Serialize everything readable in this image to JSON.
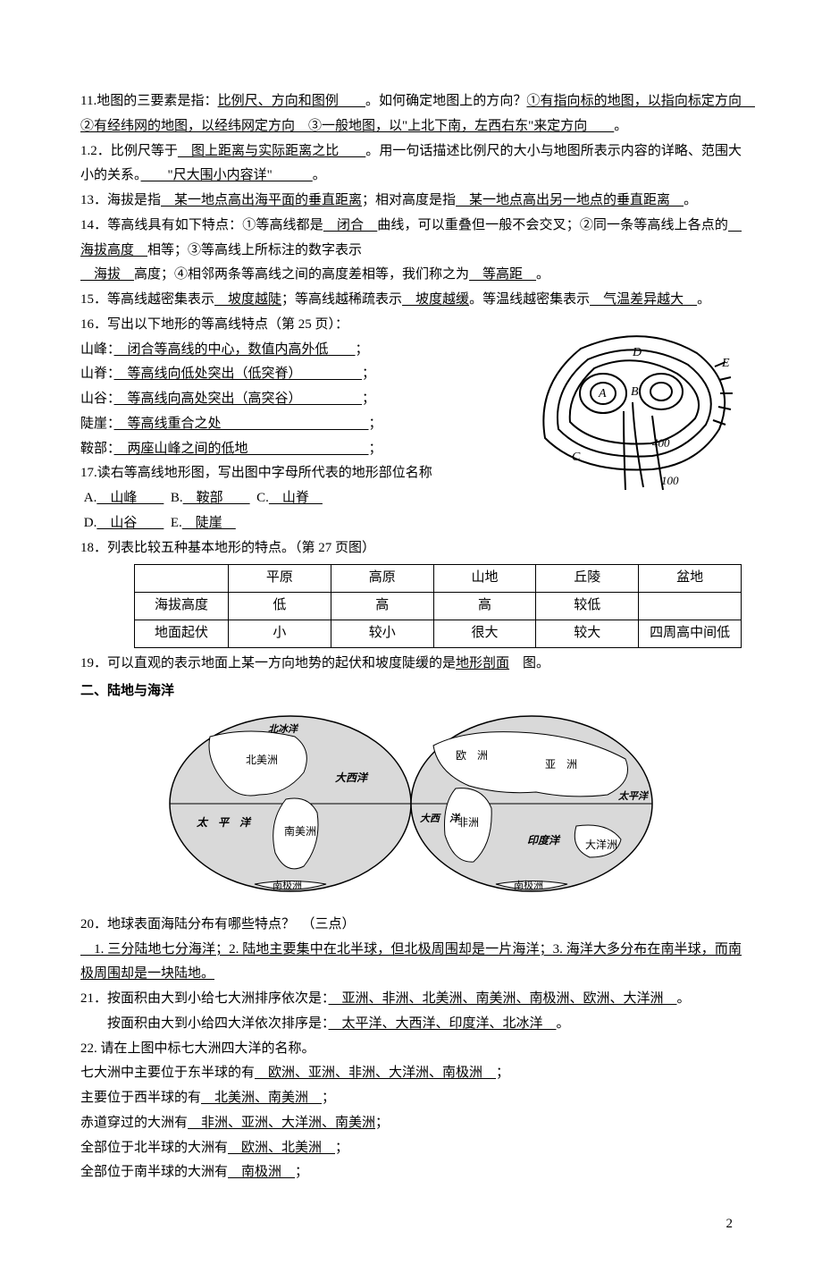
{
  "q11": {
    "lead": "11.地图的三要素是指：",
    "ans1": "比例尺、方向和图例　　",
    "mid": "。如何确定地图上的方向？",
    "ans2": "①有指向标的地图，以指向标定方向　②有经纬网的地图，以经纬网定方向　③一般地图，以\"上北下南，左西右东\"来定方向　　",
    "tail": "。"
  },
  "q12": {
    "lead": "1.2．比例尺等于",
    "ans1": "　图上距离与实际距离之比　　",
    "mid": "。用一句话描述比例尺的大小与地图所表示内容的详略、范围大小的关系。",
    "ans2": "　　\"尺大围小内容详\"　　　",
    "tail": "。"
  },
  "q13": {
    "lead": "13．海拔是指",
    "ans1": "　某一地点高出海平面的垂直距离",
    "mid": "；相对高度是指",
    "ans2": "　某一地点高出另一地点的垂直距离　",
    "tail": "。"
  },
  "q14": {
    "lead1": "14．等高线具有如下特点：①等高线都是",
    "a1": "　闭合　",
    "mid1": "曲线，可以重叠但一般不会交叉；②同一条等高线上各点的",
    "a2": "　海拔高度　",
    "mid2": "相等；③等高线上所标注的数字表示",
    "a3": "　海拔　",
    "mid3": "高度；④相邻两条等高线之间的高度差相等，我们称之为",
    "a4": "　等高距　",
    "tail": "。"
  },
  "q15": {
    "lead": "15．等高线越密集表示",
    "a1": "　坡度越陡",
    "mid1": "；等高线越稀疏表示",
    "a2": "　坡度越缓",
    "mid2": "。等温线越密集表示",
    "a3": "　气温差异越大　",
    "tail": "。"
  },
  "q16": {
    "title": "16．写出以下地形的等高线特点（第 25 页）：",
    "items": [
      {
        "label": "山峰：",
        "ans": "　闭合等高线的中心，数值内高外低　　"
      },
      {
        "label": "山脊：",
        "ans": "　等高线向低处突出（低突脊）　　　　　"
      },
      {
        "label": "山谷：",
        "ans": "　等高线向高处突出（高突谷）　　　　　"
      },
      {
        "label": "陡崖：",
        "ans": "　等高线重合之处　　　　　　　　　　　"
      },
      {
        "label": "鞍部：",
        "ans": "　两座山峰之间的低地　　　　　　　　　"
      }
    ],
    "trail": "；"
  },
  "q17": {
    "title": "17.读右等高线地形图，写出图中字母所代表的地形部位名称",
    "items": [
      {
        "l": "A.",
        "a": "　山峰　　"
      },
      {
        "l": "B.",
        "a": "　鞍部　　"
      },
      {
        "l": "C.",
        "a": "　山脊　"
      },
      {
        "l": "D.",
        "a": "　山谷　　"
      },
      {
        "l": "E.",
        "a": "　陡崖　"
      }
    ]
  },
  "q18": {
    "title": "18．列表比较五种基本地形的特点。（第 27 页图）",
    "headers": [
      "",
      "平原",
      "高原",
      "山地",
      "丘陵",
      "盆地"
    ],
    "rows": [
      [
        "海拔高度",
        "低",
        "高",
        "高",
        "较低",
        ""
      ],
      [
        "地面起伏",
        "小",
        "较小",
        "很大",
        "较大",
        "四周高中间低"
      ]
    ]
  },
  "q19": {
    "lead": "19．可以直观的表示地面上某一方向地势的起伏和坡度陡缓的是",
    "ans": "地形剖面",
    "tail": "　图。"
  },
  "sec2": "二、陆地与海洋",
  "map_labels": {
    "na": "北美洲",
    "sa": "南美洲",
    "eu": "欧　洲",
    "as": "亚　洲",
    "af": "非洲",
    "au": "大洋洲",
    "ant1": "南极洲",
    "ant2": "南极洲",
    "arc": "北冰洋",
    "pac1": "太　平　洋",
    "pac2": "太平洋",
    "atl1": "大西洋",
    "atl2": "大西　洋",
    "ind": "印度洋"
  },
  "q20": {
    "title": "20．地球表面海陆分布有哪些特点？　（三点）",
    "ans": "　1. 三分陆地七分海洋；2. 陆地主要集中在北半球，但北极周围却是一片海洋；3. 海洋大多分布在南半球，而南极周围却是一块陆地。"
  },
  "q21": {
    "l1": "21．按面积由大到小给七大洲排序依次是：",
    "a1": "　亚洲、非洲、北美洲、南美洲、南极洲、欧洲、大洋洲　",
    "t1": "。",
    "l2": "按面积由大到小给四大洋依次排序是：",
    "a2": "　太平洋、大西洋、印度洋、北冰洋　",
    "t2": "。"
  },
  "q22": {
    "title": "22. 请在上图中标七大洲四大洋的名称。",
    "lines": [
      {
        "lead": "七大洲中主要位于东半球的有",
        "ans": "　欧洲、亚洲、非洲、大洋洲、南极洲　",
        "tail": "；"
      },
      {
        "lead": "主要位于西半球的有",
        "ans": "　北美洲、南美洲　",
        "tail": "；"
      },
      {
        "lead": "赤道穿过的大洲有",
        "ans": "　非洲、亚洲、大洋洲、南美洲",
        "tail": "；"
      },
      {
        "lead": "全部位于北半球的大洲有",
        "ans": "　欧洲、北美洲　",
        "tail": "；"
      },
      {
        "lead": "全部位于南半球的大洲有",
        "ans": "　南极洲　",
        "tail": "；"
      }
    ]
  },
  "contour_fig": {
    "labels": {
      "A": "A",
      "B": "B",
      "C": "C",
      "D": "D",
      "E": "E",
      "n400": "400",
      "n100": "100"
    }
  },
  "page_number": "2"
}
